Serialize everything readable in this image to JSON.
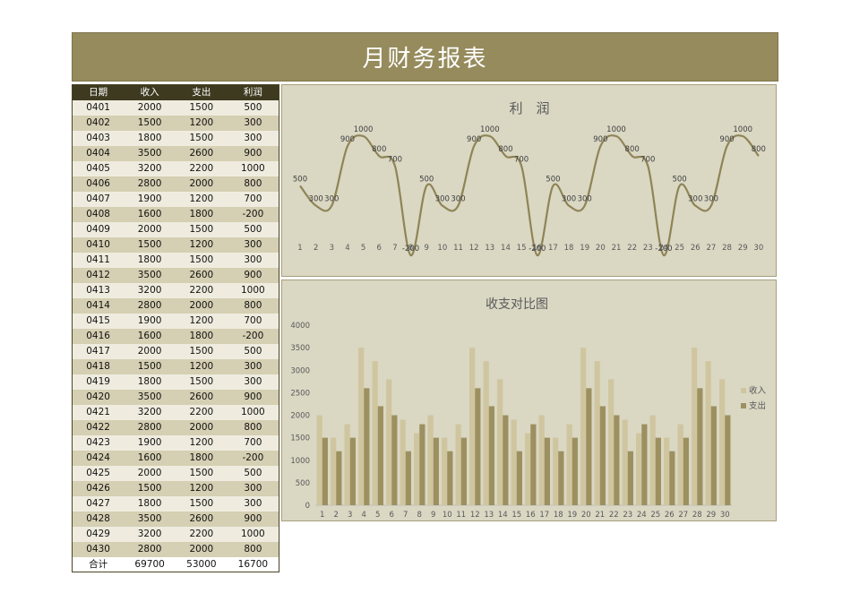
{
  "report_title": "月财务报表",
  "table": {
    "headers": [
      "日期",
      "收入",
      "支出",
      "利润"
    ],
    "rows": [
      [
        "0401",
        "2000",
        "1500",
        "500"
      ],
      [
        "0402",
        "1500",
        "1200",
        "300"
      ],
      [
        "0403",
        "1800",
        "1500",
        "300"
      ],
      [
        "0404",
        "3500",
        "2600",
        "900"
      ],
      [
        "0405",
        "3200",
        "2200",
        "1000"
      ],
      [
        "0406",
        "2800",
        "2000",
        "800"
      ],
      [
        "0407",
        "1900",
        "1200",
        "700"
      ],
      [
        "0408",
        "1600",
        "1800",
        "-200"
      ],
      [
        "0409",
        "2000",
        "1500",
        "500"
      ],
      [
        "0410",
        "1500",
        "1200",
        "300"
      ],
      [
        "0411",
        "1800",
        "1500",
        "300"
      ],
      [
        "0412",
        "3500",
        "2600",
        "900"
      ],
      [
        "0413",
        "3200",
        "2200",
        "1000"
      ],
      [
        "0414",
        "2800",
        "2000",
        "800"
      ],
      [
        "0415",
        "1900",
        "1200",
        "700"
      ],
      [
        "0416",
        "1600",
        "1800",
        "-200"
      ],
      [
        "0417",
        "2000",
        "1500",
        "500"
      ],
      [
        "0418",
        "1500",
        "1200",
        "300"
      ],
      [
        "0419",
        "1800",
        "1500",
        "300"
      ],
      [
        "0420",
        "3500",
        "2600",
        "900"
      ],
      [
        "0421",
        "3200",
        "2200",
        "1000"
      ],
      [
        "0422",
        "2800",
        "2000",
        "800"
      ],
      [
        "0423",
        "1900",
        "1200",
        "700"
      ],
      [
        "0424",
        "1600",
        "1800",
        "-200"
      ],
      [
        "0425",
        "2000",
        "1500",
        "500"
      ],
      [
        "0426",
        "1500",
        "1200",
        "300"
      ],
      [
        "0427",
        "1800",
        "1500",
        "300"
      ],
      [
        "0428",
        "3500",
        "2600",
        "900"
      ],
      [
        "0429",
        "3200",
        "2200",
        "1000"
      ],
      [
        "0430",
        "2800",
        "2000",
        "800"
      ]
    ],
    "total_row": [
      "合计",
      "69700",
      "53000",
      "16700"
    ]
  },
  "colors": {
    "title_bg": "#958b5c",
    "header_bg": "#3e3a1f",
    "row_light": "#efecdf",
    "row_dark": "#d5cfb3",
    "panel_bg": "#dad7c3",
    "line": "#8e8456",
    "income": "#cfc6a0",
    "expense": "#9c9060"
  },
  "chart_data": [
    {
      "type": "line",
      "title": "利　润",
      "smooth": true,
      "x": [
        1,
        2,
        3,
        4,
        5,
        6,
        7,
        8,
        9,
        10,
        11,
        12,
        13,
        14,
        15,
        16,
        17,
        18,
        19,
        20,
        21,
        22,
        23,
        24,
        25,
        26,
        27,
        28,
        29,
        30
      ],
      "series": [
        {
          "values": [
            500,
            300,
            300,
            900,
            1000,
            800,
            700,
            -200,
            500,
            300,
            300,
            900,
            1000,
            800,
            700,
            -200,
            500,
            300,
            300,
            900,
            1000,
            800,
            700,
            -200,
            500,
            300,
            300,
            900,
            1000,
            800
          ]
        }
      ],
      "data_labels": true,
      "ylim": [
        -200,
        1000
      ],
      "grid": false
    },
    {
      "type": "bar",
      "title": "收支对比图",
      "categories": [
        "1",
        "2",
        "3",
        "4",
        "5",
        "6",
        "7",
        "8",
        "9",
        "10",
        "11",
        "12",
        "13",
        "14",
        "15",
        "16",
        "17",
        "18",
        "19",
        "20",
        "21",
        "22",
        "23",
        "24",
        "25",
        "26",
        "27",
        "28",
        "29",
        "30"
      ],
      "series": [
        {
          "name": "收入",
          "values": [
            2000,
            1500,
            1800,
            3500,
            3200,
            2800,
            1900,
            1600,
            2000,
            1500,
            1800,
            3500,
            3200,
            2800,
            1900,
            1600,
            2000,
            1500,
            1800,
            3500,
            3200,
            2800,
            1900,
            1600,
            2000,
            1500,
            1800,
            3500,
            3200,
            2800
          ]
        },
        {
          "name": "支出",
          "values": [
            1500,
            1200,
            1500,
            2600,
            2200,
            2000,
            1200,
            1800,
            1500,
            1200,
            1500,
            2600,
            2200,
            2000,
            1200,
            1800,
            1500,
            1200,
            1500,
            2600,
            2200,
            2000,
            1200,
            1800,
            1500,
            1200,
            1500,
            2600,
            2200,
            2000
          ]
        }
      ],
      "ylim": [
        0,
        4000
      ],
      "yticks": [
        "0",
        "500",
        "1000",
        "1500",
        "2000",
        "2500",
        "3000",
        "3500",
        "4000"
      ],
      "legend": "right",
      "grid": false
    }
  ]
}
